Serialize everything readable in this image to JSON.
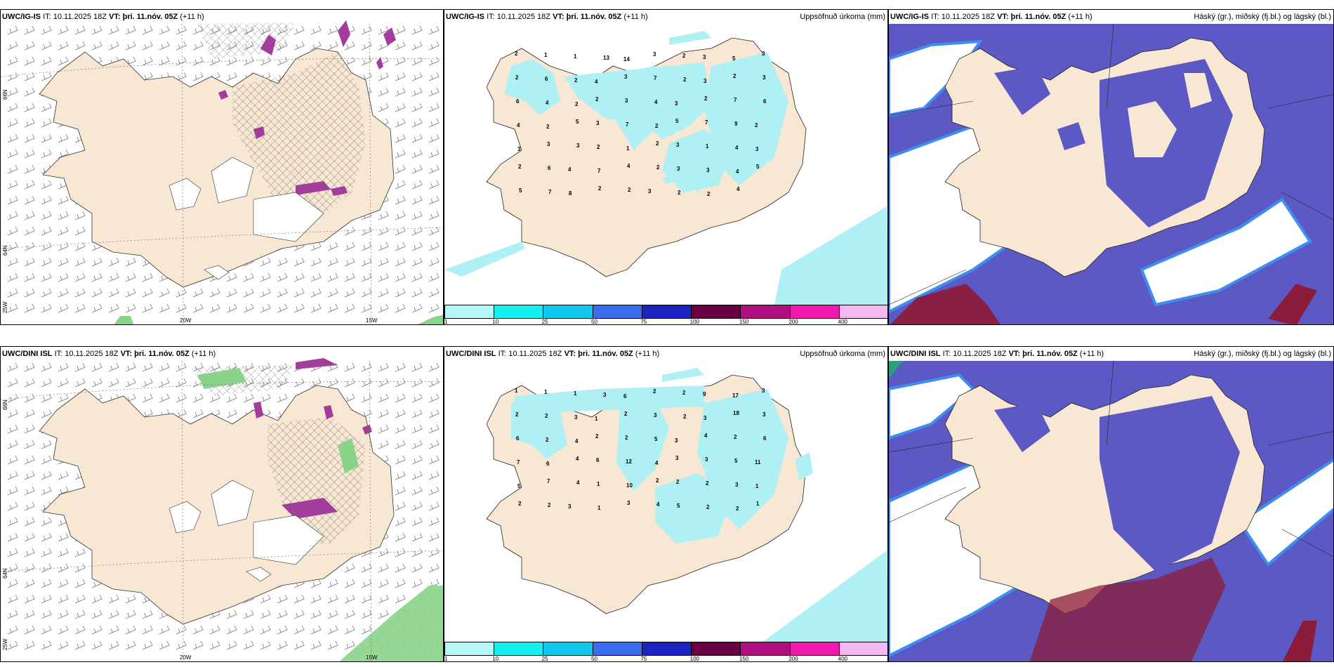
{
  "panels": {
    "p1": {
      "model": "UWC/IG-IS",
      "it_label": "IT:",
      "it_value": "10.11.2025 18Z",
      "vt_label": "VT: þri. 11.nóv. 05Z",
      "lead": "(+11 h)",
      "right": ""
    },
    "p2": {
      "model": "UWC/IG-IS",
      "it_label": "IT:",
      "it_value": "10.11.2025 18Z",
      "vt_label": "VT: þri. 11.nóv. 05Z",
      "lead": "(+11 h)",
      "right": "Uppsöfnuð úrkoma (mm)"
    },
    "p3": {
      "model": "UWC/IG-IS",
      "it_label": "IT:",
      "it_value": "10.11.2025 18Z",
      "vt_label": "VT: þri. 11.nóv. 05Z",
      "lead": "(+11 h)",
      "right": "Háský (gr.), miðský (fj.bl.) og lágský (bl.)"
    },
    "p4": {
      "model": "UWC/DINI ISL",
      "it_label": "IT:",
      "it_value": "10.11.2025 18Z",
      "vt_label": "VT: þri. 11.nóv. 05Z",
      "lead": "(+11 h)",
      "right": ""
    },
    "p5": {
      "model": "UWC/DINI ISL",
      "it_label": "IT:",
      "it_value": "10.11.2025 18Z",
      "vt_label": "VT: þri. 11.nóv. 05Z",
      "lead": "(+11 h)",
      "right": "Uppsöfnuð úrkoma (mm)"
    },
    "p6": {
      "model": "UWC/DINI ISL",
      "it_label": "IT:",
      "it_value": "10.11.2025 18Z",
      "vt_label": "VT: þri. 11.nóv. 05Z",
      "lead": "(+11 h)",
      "right": "Háský (gr.), miðský (fj.bl.) og lágský (bl.)"
    }
  },
  "grid_labels": {
    "lat66": "66N",
    "lat64": "64N",
    "lon25": "25W",
    "lon20": "20W",
    "lon15": "15W"
  },
  "legend": {
    "ticks": [
      "1",
      "10",
      "25",
      "50",
      "75",
      "100",
      "150",
      "200",
      "400"
    ],
    "colors": [
      "#b3f7f7",
      "#14f0f0",
      "#10c8ee",
      "#3a6cf0",
      "#1e22c0",
      "#6a0044",
      "#b0107f",
      "#f01ab0",
      "#f5b8f2"
    ]
  },
  "colors": {
    "land": "#f7e7d3",
    "rain": "#aff0f5",
    "hatch": "#555555",
    "snow": "#a23d9c",
    "cloud_low": "#5c58c4",
    "cloud_edge": "#3e8ef0",
    "cloud_high": "#8b1c3c",
    "green": "#8ad48a"
  },
  "precip_numbers": {
    "top": [
      "2",
      "1",
      "1",
      "13",
      "14",
      "3",
      "2",
      "3",
      "5",
      "3",
      "2",
      "6",
      "2",
      "4",
      "3",
      "7",
      "2",
      "3",
      "2",
      "3",
      "6",
      "4",
      "2",
      "2",
      "3",
      "4",
      "3",
      "2",
      "7",
      "6",
      "4",
      "2",
      "5",
      "3",
      "7",
      "2",
      "5",
      "7",
      "9",
      "2",
      "3",
      "3",
      "3",
      "2",
      "1",
      "2",
      "3",
      "1",
      "4",
      "3",
      "2",
      "6",
      "4",
      "7",
      "4",
      "2",
      "3",
      "3",
      "4",
      "5",
      "5",
      "7",
      "8",
      "2",
      "2",
      "3",
      "2",
      "2",
      "4"
    ],
    "bottom": [
      "1",
      "1",
      "1",
      "3",
      "6",
      "2",
      "2",
      "9",
      "17",
      "3",
      "2",
      "2",
      "3",
      "1",
      "2",
      "3",
      "2",
      "3",
      "18",
      "3",
      "6",
      "2",
      "4",
      "2",
      "2",
      "5",
      "3",
      "4",
      "2",
      "6",
      "7",
      "6",
      "4",
      "6",
      "12",
      "4",
      "3",
      "3",
      "5",
      "11",
      "5",
      "7",
      "4",
      "1",
      "10",
      "2",
      "2",
      "2",
      "3",
      "1",
      "2",
      "2",
      "3",
      "1",
      "3",
      "4",
      "5",
      "2",
      "2",
      "1"
    ]
  }
}
